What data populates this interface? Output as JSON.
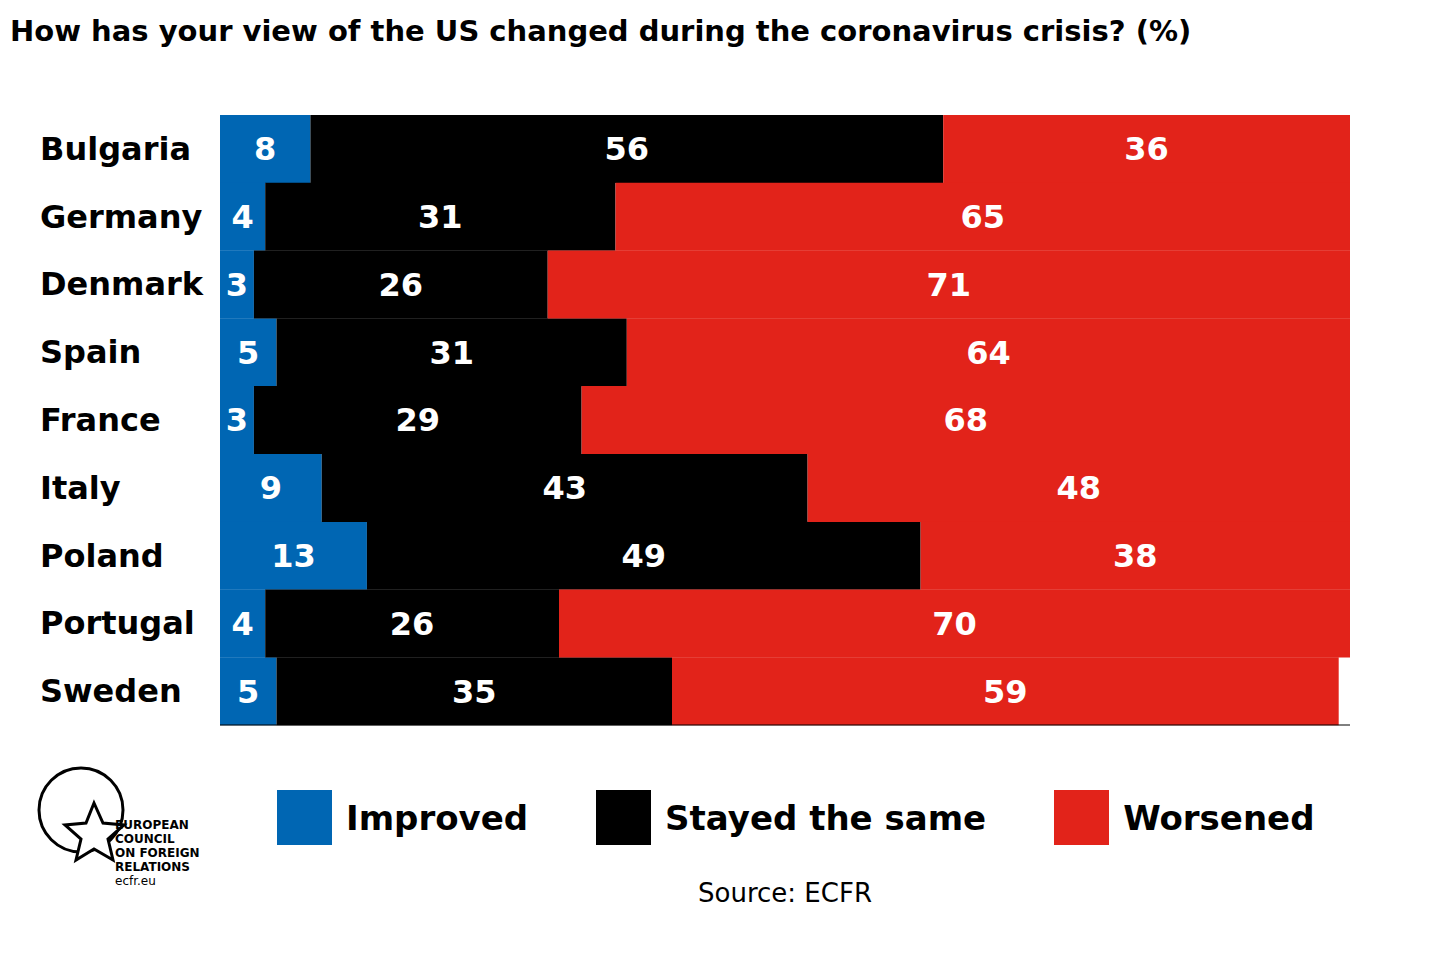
{
  "chart_data": {
    "type": "bar",
    "title": "How has your view of the US changed during the coronavirus crisis? (%)",
    "orientation": "horizontal",
    "stacked": true,
    "data_labels": true,
    "tick_labels": "y",
    "grid": false,
    "legend": "bottom",
    "categories": [
      "Bulgaria",
      "Germany",
      "Denmark",
      "Spain",
      "France",
      "Italy",
      "Poland",
      "Portugal",
      "Sweden"
    ],
    "series": [
      {
        "name": "Improved",
        "color": "#0066b3",
        "values": [
          8,
          4,
          3,
          5,
          3,
          9,
          13,
          4,
          5
        ]
      },
      {
        "name": "Stayed the same",
        "color": "#000000",
        "values": [
          56,
          31,
          26,
          31,
          29,
          43,
          49,
          26,
          35
        ]
      },
      {
        "name": "Worsened",
        "color": "#e2231a",
        "values": [
          36,
          65,
          71,
          64,
          68,
          48,
          38,
          70,
          59
        ]
      }
    ],
    "xlim": [
      0,
      100
    ],
    "source": "Source: ECFR",
    "logo": [
      "EUROPEAN",
      "COUNCIL",
      "ON FOREIGN",
      "RELATIONS",
      "ecfr.eu"
    ]
  }
}
